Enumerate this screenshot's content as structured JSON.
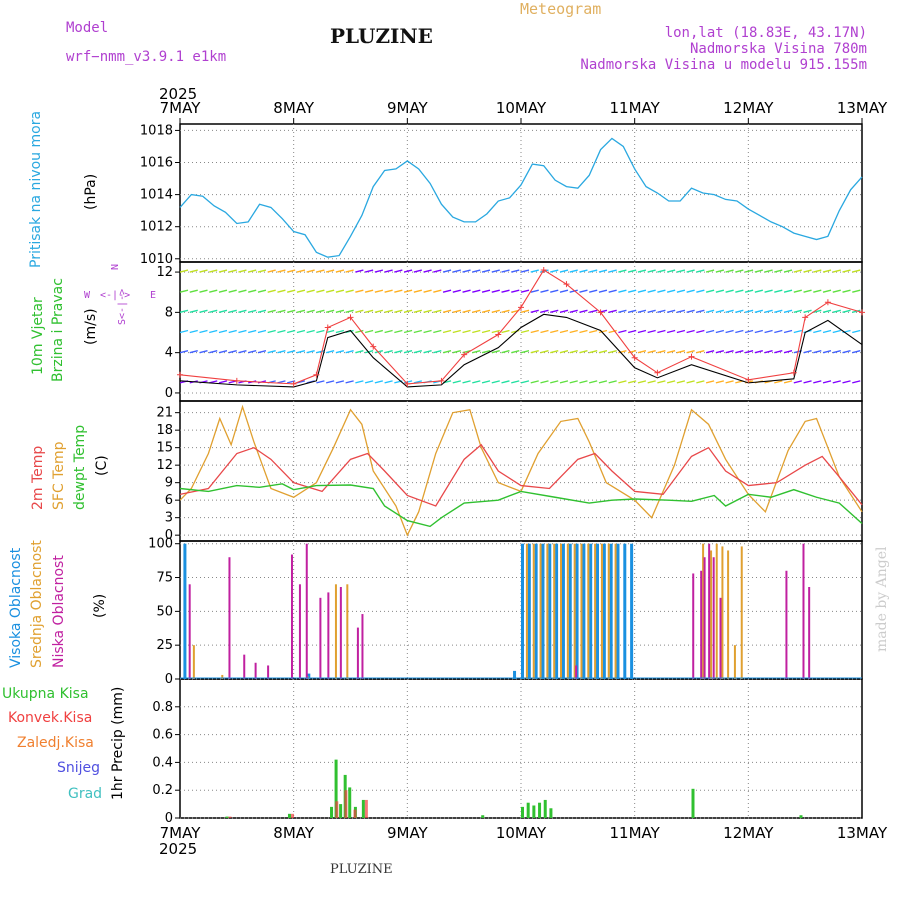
{
  "header": {
    "model_label": "Model",
    "model_name": "wrf−nmm_v3.9.1  e1km",
    "title": "PLUZINE",
    "product": "Meteogram",
    "location": "lon,lat (18.83E, 43.17N)",
    "altitude": "Nadmorska Visina 780m",
    "model_altitude": "Nadmorska Visina u modelu 915.155m",
    "year_top": "2025",
    "year_bottom": "2025",
    "footer_place": "PLUZINE",
    "credit": "made by Angel"
  },
  "colors": {
    "pressure": "#2aa8e0",
    "temp2m": "#e8484a",
    "sfc_temp": "#e0a030",
    "dewpt": "#30c030",
    "high_cloud": "#1a90e0",
    "mid_cloud": "#e0a030",
    "low_cloud": "#c020a0",
    "total_rain": "#30c030",
    "conv_rain": "#f04040",
    "frozen_rain": "#f08030",
    "snow": "#5050e0",
    "hail": "#40c0c0",
    "wind_label": "#30c030",
    "wind_speed": "#000000",
    "wind_gust": "#f04040",
    "compass": "#b040d0"
  },
  "chart_data": [
    {
      "type": "line",
      "ylabel_left": "Pritisak na nivou mora",
      "unit": "(hPa)",
      "ylim": [
        1010,
        1018
      ],
      "yticks": [
        1010,
        1012,
        1014,
        1016,
        1018
      ],
      "x_dates": [
        "7MAY",
        "8MAY",
        "9MAY",
        "10MAY",
        "11MAY",
        "12MAY",
        "13MAY"
      ],
      "series": [
        {
          "x": [
            0,
            0.1,
            0.2,
            0.3,
            0.4,
            0.5,
            0.6,
            0.7,
            0.8,
            0.9,
            1.0,
            1.1,
            1.2,
            1.3,
            1.4,
            1.5,
            1.6,
            1.7,
            1.8,
            1.9,
            2.0,
            2.1,
            2.2,
            2.3,
            2.4,
            2.5,
            2.6,
            2.7,
            2.8,
            2.9,
            3.0,
            3.1,
            3.2,
            3.3,
            3.4,
            3.5,
            3.6,
            3.7,
            3.8,
            3.9,
            4.0,
            4.1,
            4.2,
            4.3,
            4.4,
            4.5,
            4.6,
            4.7,
            4.8,
            4.9,
            5.0,
            5.1,
            5.2,
            5.3,
            5.4,
            5.5,
            5.6,
            5.7,
            5.8,
            5.9,
            6.0
          ],
          "y": [
            1013.2,
            1014.0,
            1013.9,
            1013.3,
            1012.9,
            1012.2,
            1012.3,
            1013.4,
            1013.2,
            1012.5,
            1011.7,
            1011.5,
            1010.4,
            1010.1,
            1010.2,
            1011.4,
            1012.7,
            1014.5,
            1015.5,
            1015.6,
            1016.1,
            1015.6,
            1014.7,
            1013.4,
            1012.6,
            1012.3,
            1012.3,
            1012.8,
            1013.6,
            1013.8,
            1014.6,
            1015.9,
            1015.8,
            1014.9,
            1014.5,
            1014.4,
            1015.2,
            1016.8,
            1017.5,
            1017.0,
            1015.6,
            1014.5,
            1014.1,
            1013.6,
            1013.6,
            1014.4,
            1014.1,
            1014.0,
            1013.7,
            1013.6,
            1013.1,
            1012.7,
            1012.3,
            1012.0,
            1011.6,
            1011.4,
            1011.2,
            1011.4,
            1013.0,
            1014.3,
            1015.1
          ]
        }
      ]
    },
    {
      "type": "line",
      "ylabel_left": "10m Vjetar Brzina i Pravac",
      "unit": "(m/s)",
      "compass": [
        "N",
        "S",
        "W",
        "E",
        "<",
        "|",
        "->",
        "/"
      ],
      "ylim": [
        -0.8,
        13
      ],
      "yticks": [
        0,
        4,
        8,
        12
      ],
      "series": [
        {
          "name": "wind speed",
          "x": [
            0,
            0.5,
            1.0,
            1.2,
            1.3,
            1.5,
            1.7,
            2.0,
            2.3,
            2.5,
            2.8,
            3.0,
            3.2,
            3.4,
            3.7,
            4.0,
            4.2,
            4.5,
            5.0,
            5.4,
            5.5,
            5.7,
            6.0
          ],
          "y": [
            1.2,
            0.8,
            0.6,
            1.2,
            5.5,
            6.2,
            3.5,
            0.6,
            0.8,
            2.8,
            4.5,
            6.5,
            7.8,
            7.5,
            6.2,
            2.5,
            1.5,
            2.8,
            1.0,
            1.4,
            6.0,
            7.2,
            4.8
          ]
        },
        {
          "name": "wind gust",
          "x": [
            0,
            0.5,
            1.0,
            1.2,
            1.3,
            1.5,
            1.7,
            2.0,
            2.3,
            2.5,
            2.8,
            3.0,
            3.2,
            3.4,
            3.7,
            4.0,
            4.2,
            4.5,
            5.0,
            5.4,
            5.5,
            5.7,
            6.0
          ],
          "y": [
            1.8,
            1.2,
            0.9,
            1.8,
            6.5,
            7.5,
            4.6,
            0.9,
            1.2,
            3.8,
            5.8,
            8.5,
            12.2,
            10.8,
            8.0,
            3.5,
            2.0,
            3.6,
            1.3,
            2.0,
            7.5,
            9.0,
            8.0
          ]
        }
      ]
    },
    {
      "type": "line",
      "ylabel_left": [
        "2m Temp",
        "SFC Temp",
        "dewpt Temp"
      ],
      "unit": "(C)",
      "ylim": [
        -1,
        23
      ],
      "yticks": [
        0,
        3,
        6,
        9,
        12,
        15,
        18,
        21
      ],
      "series": [
        {
          "name": "2m Temp",
          "x": [
            0,
            0.25,
            0.5,
            0.65,
            0.8,
            1.0,
            1.25,
            1.5,
            1.65,
            1.8,
            2.0,
            2.25,
            2.5,
            2.65,
            2.8,
            3.0,
            3.25,
            3.5,
            3.65,
            3.8,
            4.0,
            4.25,
            4.5,
            4.65,
            4.8,
            5.0,
            5.25,
            5.5,
            5.65,
            5.8,
            6.0
          ],
          "y": [
            7,
            8,
            14,
            15,
            13,
            9,
            7.5,
            13,
            14,
            11,
            6.8,
            5,
            13,
            15.5,
            11,
            8.5,
            8,
            13,
            14,
            11,
            7.5,
            7,
            13.5,
            15,
            11,
            8.5,
            9,
            12,
            13.5,
            10,
            5.2
          ]
        },
        {
          "name": "SFC Temp",
          "x": [
            0,
            0.1,
            0.25,
            0.35,
            0.45,
            0.55,
            0.65,
            0.8,
            1.0,
            1.2,
            1.35,
            1.5,
            1.6,
            1.7,
            1.9,
            2.0,
            2.1,
            2.25,
            2.4,
            2.55,
            2.65,
            2.8,
            3.0,
            3.15,
            3.35,
            3.5,
            3.6,
            3.75,
            4.0,
            4.15,
            4.35,
            4.5,
            4.65,
            4.8,
            5.0,
            5.15,
            5.35,
            5.5,
            5.6,
            5.8,
            6.0
          ],
          "y": [
            6,
            8,
            14,
            20,
            15.5,
            22,
            16,
            8,
            6.5,
            9,
            15,
            21.5,
            19,
            11,
            5,
            0,
            4,
            14,
            21,
            21.5,
            15,
            9,
            7.5,
            14,
            19.5,
            20,
            16,
            9,
            6,
            3,
            12,
            21.5,
            19,
            13,
            7,
            4,
            14.5,
            19.5,
            20,
            10,
            4
          ]
        },
        {
          "name": "dewpt Temp",
          "x": [
            0,
            0.25,
            0.5,
            0.7,
            0.9,
            1.0,
            1.2,
            1.5,
            1.7,
            1.8,
            2.0,
            2.2,
            2.3,
            2.5,
            2.8,
            3.0,
            3.3,
            3.6,
            3.8,
            4.0,
            4.3,
            4.5,
            4.7,
            4.8,
            5.0,
            5.2,
            5.4,
            5.6,
            5.8,
            6.0
          ],
          "y": [
            8,
            7.5,
            8.5,
            8.2,
            8.8,
            7.8,
            8.5,
            8.6,
            8,
            5,
            2.5,
            1.5,
            3,
            5.5,
            6,
            7.5,
            6.5,
            5.5,
            6,
            6.2,
            6,
            5.8,
            6.8,
            5,
            7,
            6.5,
            7.8,
            6.5,
            5.5,
            2
          ]
        }
      ]
    },
    {
      "type": "bar",
      "ylabel_left": [
        "Visoka Oblacnost",
        "Srednja Oblacnost",
        "Niska Oblacnost"
      ],
      "unit": "(%)",
      "ylim": [
        0,
        100
      ],
      "yticks": [
        0,
        25,
        50,
        75,
        100
      ],
      "series": [
        {
          "name": "Visoka Oblacnost",
          "x": [
            0.03,
            1.12,
            2.93,
            3.0,
            3.06,
            3.12,
            3.18,
            3.24,
            3.3,
            3.36,
            3.42,
            3.48,
            3.54,
            3.6,
            3.66,
            3.72,
            3.78,
            3.84,
            3.9,
            3.96
          ],
          "y": [
            100,
            4,
            6,
            100,
            100,
            100,
            100,
            100,
            100,
            100,
            100,
            100,
            100,
            100,
            100,
            100,
            100,
            100,
            100,
            100
          ]
        },
        {
          "name": "Srednja Oblacnost",
          "x": [
            0.1,
            0.35,
            1.1,
            1.35,
            1.45,
            3.03,
            3.09,
            3.15,
            3.21,
            3.27,
            3.33,
            3.39,
            3.45,
            3.51,
            3.57,
            3.63,
            3.69,
            3.75,
            3.81,
            4.58,
            4.65,
            4.7,
            4.75,
            4.8,
            4.86,
            4.92
          ],
          "y": [
            25,
            3,
            2,
            70,
            70,
            100,
            100,
            100,
            100,
            100,
            100,
            100,
            100,
            100,
            100,
            100,
            100,
            100,
            100,
            100,
            95,
            100,
            98,
            95,
            25,
            98
          ]
        },
        {
          "name": "Niska Oblacnost",
          "x": [
            0.05,
            0.4,
            0.53,
            0.63,
            0.74,
            0.95,
            1.02,
            1.08,
            1.2,
            1.27,
            1.38,
            1.53,
            1.57,
            3.45,
            4.48,
            4.55,
            4.58,
            4.62,
            4.66,
            4.72,
            5.3,
            5.45,
            5.5
          ],
          "y": [
            70,
            90,
            18,
            12,
            10,
            92,
            70,
            100,
            60,
            64,
            68,
            38,
            48,
            10,
            78,
            80,
            90,
            100,
            90,
            60,
            80,
            100,
            68
          ]
        }
      ]
    },
    {
      "type": "bar",
      "ylabel_left": "1hr Precip",
      "unit": "(mm)",
      "legend": [
        "Ukupna Kisa",
        "Konvek.Kisa",
        "Zaledj.Kisa",
        "Snijeg",
        "Grad"
      ],
      "ylim": [
        0,
        1
      ],
      "yticks": [
        0,
        0.2,
        0.4,
        0.6,
        0.8
      ],
      "series": [
        {
          "name": "Ukupna Kisa",
          "x": [
            0.4,
            0.95,
            1.32,
            1.36,
            1.4,
            1.44,
            1.48,
            1.53,
            1.6,
            2.65,
            3.0,
            3.05,
            3.1,
            3.15,
            3.2,
            3.25,
            4.5,
            5.45
          ],
          "y": [
            0.01,
            0.03,
            0.08,
            0.42,
            0.1,
            0.31,
            0.22,
            0.08,
            0.13,
            0.02,
            0.08,
            0.11,
            0.09,
            0.11,
            0.13,
            0.07,
            0.21,
            0.02
          ]
        },
        {
          "name": "Konvek.Kisa",
          "x": [
            0.4,
            0.95,
            1.34,
            1.42,
            1.5,
            1.6
          ],
          "y": [
            0.01,
            0.03,
            0.12,
            0.2,
            0.06,
            0.13
          ]
        }
      ]
    }
  ]
}
